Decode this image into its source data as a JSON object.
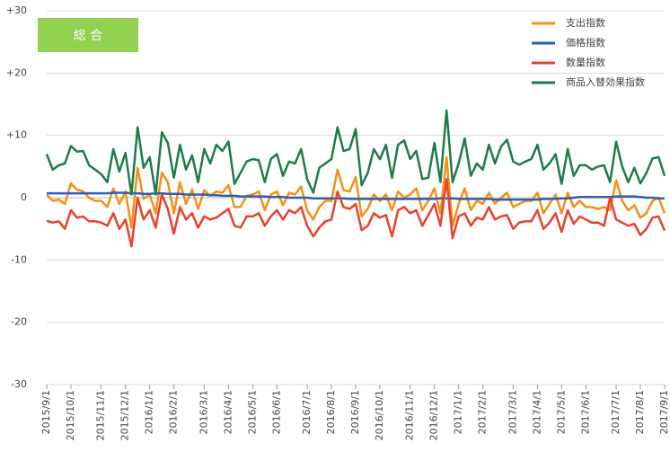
{
  "chart_data": {
    "type": "line",
    "label": "総 合",
    "legend": "top-right",
    "grid": true,
    "ylim": [
      -30,
      30
    ],
    "yticks": [
      {
        "value": 30,
        "label": "+30"
      },
      {
        "value": 20,
        "label": "+20"
      },
      {
        "value": 10,
        "label": "+10"
      },
      0,
      -10,
      -20,
      -30
    ],
    "categories": [
      "2015/9/1",
      null,
      null,
      null,
      "2015/10/1",
      null,
      null,
      null,
      null,
      "2015/11/1",
      null,
      null,
      null,
      "2015/12/1",
      null,
      null,
      null,
      "2016/1/1",
      null,
      null,
      null,
      "2016/2/1",
      null,
      null,
      null,
      null,
      "2016/3/1",
      null,
      null,
      null,
      "2016/4/1",
      null,
      null,
      null,
      "2016/5/1",
      null,
      null,
      null,
      "2016/6/1",
      null,
      null,
      null,
      null,
      "2016/7/1",
      null,
      null,
      null,
      "2016/8/1",
      null,
      null,
      null,
      "2016/9/1",
      null,
      null,
      null,
      "2016/10/1",
      null,
      null,
      null,
      null,
      "2016/11/1",
      null,
      null,
      null,
      "2016/12/1",
      null,
      null,
      null,
      "2017/1/1",
      null,
      null,
      null,
      "2017/2/1",
      null,
      null,
      null,
      null,
      "2017/3/1",
      null,
      null,
      null,
      "2017/4/1",
      null,
      null,
      null,
      "2017/5/1",
      null,
      null,
      null,
      "2017/6/1",
      null,
      null,
      null,
      null,
      "2017/7/1",
      null,
      null,
      null,
      "2017/8/1",
      null,
      null,
      null,
      "2017/9/1"
    ],
    "series": [
      {
        "name": "支出指数",
        "color": "#f39019",
        "values": [
          0.5,
          -0.5,
          -0.3,
          -1,
          2.3,
          1.3,
          1,
          0,
          -0.5,
          -0.5,
          -1.5,
          1.5,
          -1,
          1,
          -4.8,
          4.8,
          -0.2,
          0.5,
          -2.5,
          4,
          2.5,
          -2.5,
          2.5,
          -1,
          1.3,
          -1.8,
          1.2,
          0.3,
          1,
          0.8,
          2,
          -1.5,
          -1.5,
          0.3,
          0.5,
          1,
          -2,
          0.5,
          1,
          -1.2,
          0.8,
          0.5,
          1.8,
          -2,
          -3.5,
          -1.5,
          -0.5,
          -0.5,
          4.5,
          1.2,
          1,
          3.3,
          -3,
          -1.8,
          0.5,
          -0.5,
          0.5,
          -2,
          1,
          0,
          0.5,
          1.5,
          -2,
          -0.5,
          1.5,
          -2.5,
          6.5,
          -4.5,
          -1,
          1.5,
          -2,
          -0.5,
          -1,
          0.8,
          -1,
          0,
          0.8,
          -1.5,
          -1,
          -0.5,
          -0.5,
          0.8,
          -2.5,
          -1,
          0.5,
          -2.5,
          0.8,
          -1.5,
          -0.5,
          -1.5,
          -1.5,
          -1.8,
          -1.5,
          -2,
          2.8,
          -0.5,
          -2,
          -1.2,
          -3.2,
          -2.5,
          -0.5,
          0,
          -2.5
        ]
      },
      {
        "name": "価格指数",
        "color": "#2e5fb5",
        "values": [
          0.7,
          0.7,
          0.7,
          0.7,
          0.7,
          0.7,
          0.7,
          0.7,
          0.7,
          0.7,
          0.7,
          0.8,
          0.8,
          0.8,
          0.7,
          0.7,
          0.6,
          0.6,
          0.7,
          0.7,
          0.6,
          0.6,
          0.6,
          0.5,
          0.5,
          0.5,
          0.5,
          0.4,
          0.4,
          0.3,
          0.3,
          0.3,
          0.2,
          0.2,
          0.2,
          0.2,
          0.2,
          0.1,
          0.1,
          0.1,
          0,
          0,
          0,
          0,
          -0.1,
          -0.1,
          -0.1,
          -0.1,
          -0.1,
          -0.1,
          -0.2,
          -0.2,
          -0.2,
          -0.2,
          -0.2,
          -0.2,
          -0.2,
          -0.2,
          -0.2,
          -0.2,
          -0.2,
          -0.2,
          -0.2,
          -0.2,
          -0.2,
          -0.1,
          -0.1,
          -0.1,
          -0.2,
          -0.2,
          -0.2,
          -0.2,
          -0.2,
          -0.2,
          -0.3,
          -0.3,
          -0.3,
          -0.3,
          -0.3,
          -0.3,
          -0.3,
          -0.3,
          -0.2,
          -0.2,
          -0.2,
          -0.1,
          -0.1,
          0,
          0.1,
          0.1,
          0.1,
          0.1,
          0.1,
          0.1,
          0.2,
          0.2,
          0.2,
          0.2,
          0.1,
          0,
          0,
          -0.1,
          -0.1
        ]
      },
      {
        "name": "数量指数",
        "color": "#e8412e",
        "values": [
          -3.7,
          -4,
          -3.8,
          -5,
          -2,
          -3.2,
          -3,
          -3.8,
          -3.8,
          -4,
          -4.5,
          -2.5,
          -5,
          -3.5,
          -7.8,
          0,
          -3.5,
          -2,
          -4.8,
          0.5,
          -1.8,
          -5.8,
          -1.5,
          -3.5,
          -2.5,
          -4.8,
          -3,
          -3.5,
          -3.2,
          -2.5,
          -1.8,
          -4.5,
          -4.8,
          -3,
          -3,
          -2.5,
          -4.5,
          -3,
          -2,
          -3.5,
          -2,
          -2.5,
          -1.5,
          -4.5,
          -6.2,
          -4.8,
          -3.8,
          -3.5,
          1,
          -1.5,
          -1.8,
          -1,
          -5.2,
          -4.5,
          -2.5,
          -3.2,
          -2.8,
          -6.2,
          -2,
          -1.5,
          -2.5,
          -2,
          -4.5,
          -2.8,
          -1,
          -4.5,
          3,
          -6.5,
          -3,
          -2.5,
          -4.5,
          -3.2,
          -3.5,
          -1.5,
          -3.5,
          -3,
          -2.8,
          -5,
          -4,
          -3.8,
          -3.8,
          -2,
          -5,
          -4,
          -2.5,
          -5.5,
          -2,
          -4.2,
          -3,
          -3.5,
          -4,
          -4,
          -4.5,
          0,
          -3.5,
          -4,
          -4.5,
          -4.2,
          -6,
          -5,
          -3.2,
          -3,
          -5.3
        ]
      },
      {
        "name": "商品入替効果指数",
        "color": "#1e7b4b",
        "values": [
          7,
          4.5,
          5.2,
          5.5,
          8.3,
          7.4,
          7.5,
          5.2,
          4.5,
          3.8,
          2.5,
          7.8,
          4.2,
          7.2,
          0.5,
          11.3,
          4.8,
          6.5,
          0.5,
          10.5,
          8.8,
          3.2,
          8.5,
          4.5,
          6.8,
          2.5,
          7.8,
          5.5,
          8.5,
          7.5,
          9,
          2.2,
          4,
          5.8,
          6.2,
          6,
          2.5,
          6.2,
          7,
          3.5,
          5.8,
          5.5,
          7.8,
          3,
          0.8,
          4.8,
          5.5,
          6.2,
          11.3,
          7.5,
          7.8,
          11,
          2,
          4,
          7.8,
          6.2,
          8.5,
          3.2,
          8.5,
          9.2,
          6.2,
          7.5,
          3,
          3.2,
          8.8,
          2.5,
          14,
          2.5,
          5.5,
          9.5,
          3.5,
          5.5,
          4.5,
          8.5,
          5.5,
          8.2,
          9.3,
          5.8,
          5.3,
          5.8,
          6.2,
          8.5,
          4.5,
          5.5,
          7,
          2.2,
          7.8,
          3.5,
          5.2,
          5.2,
          4.5,
          5,
          5.2,
          2.5,
          9,
          5,
          2.5,
          4.8,
          2.3,
          4,
          6.3,
          6.5,
          3.5
        ]
      }
    ]
  }
}
